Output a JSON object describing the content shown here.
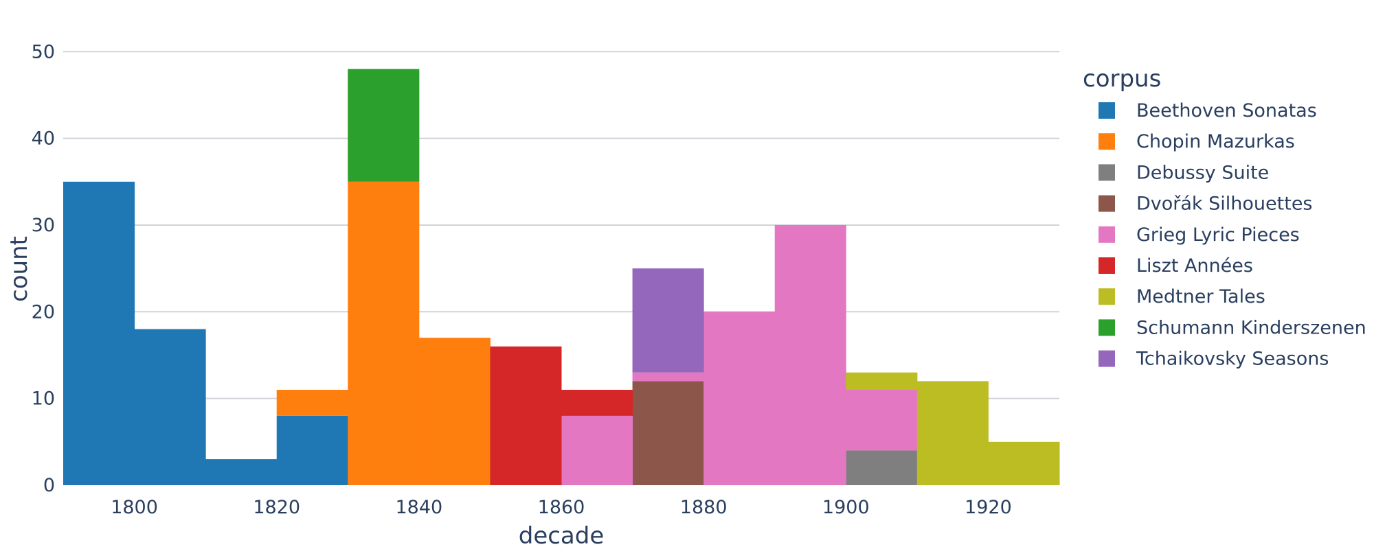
{
  "chart_data": {
    "type": "bar",
    "stacked": true,
    "title": "",
    "xlabel": "decade",
    "ylabel": "count",
    "x_bins_start": [
      1790,
      1800,
      1810,
      1820,
      1830,
      1840,
      1850,
      1860,
      1870,
      1880,
      1890,
      1900,
      1910,
      1920
    ],
    "bin_width": 10,
    "xlim": [
      1790,
      1930
    ],
    "ylim": [
      0,
      52
    ],
    "x_ticks": [
      1800,
      1820,
      1840,
      1860,
      1880,
      1900,
      1920
    ],
    "y_ticks": [
      0,
      10,
      20,
      30,
      40,
      50
    ],
    "grid": true,
    "legend_title": "corpus",
    "legend_position": "right",
    "series": [
      {
        "name": "Beethoven Sonatas",
        "color": "#1f77b4",
        "values": [
          35,
          18,
          3,
          8,
          0,
          0,
          0,
          0,
          0,
          0,
          0,
          0,
          0,
          0
        ]
      },
      {
        "name": "Chopin Mazurkas",
        "color": "#ff7f0e",
        "values": [
          0,
          0,
          0,
          3,
          35,
          17,
          0,
          0,
          0,
          0,
          0,
          0,
          0,
          0
        ]
      },
      {
        "name": "Debussy Suite",
        "color": "#7f7f7f",
        "values": [
          0,
          0,
          0,
          0,
          0,
          0,
          0,
          0,
          0,
          0,
          0,
          4,
          0,
          0
        ]
      },
      {
        "name": "Dvořák Silhouettes",
        "color": "#8c564b",
        "values": [
          0,
          0,
          0,
          0,
          0,
          0,
          0,
          0,
          12,
          0,
          0,
          0,
          0,
          0
        ]
      },
      {
        "name": "Grieg Lyric Pieces",
        "color": "#e377c2",
        "values": [
          0,
          0,
          0,
          0,
          0,
          0,
          0,
          8,
          1,
          20,
          30,
          7,
          0,
          0
        ]
      },
      {
        "name": "Liszt Années",
        "color": "#d62728",
        "values": [
          0,
          0,
          0,
          0,
          0,
          0,
          16,
          3,
          0,
          0,
          0,
          0,
          0,
          0
        ]
      },
      {
        "name": "Medtner Tales",
        "color": "#bcbd22",
        "values": [
          0,
          0,
          0,
          0,
          0,
          0,
          0,
          0,
          0,
          0,
          0,
          2,
          12,
          5
        ]
      },
      {
        "name": "Schumann Kinderszenen",
        "color": "#2ca02c",
        "values": [
          0,
          0,
          0,
          0,
          13,
          0,
          0,
          0,
          0,
          0,
          0,
          0,
          0,
          0
        ]
      },
      {
        "name": "Tchaikovsky Seasons",
        "color": "#9467bd",
        "values": [
          0,
          0,
          0,
          0,
          0,
          0,
          0,
          0,
          12,
          0,
          0,
          0,
          0,
          0
        ]
      }
    ]
  }
}
